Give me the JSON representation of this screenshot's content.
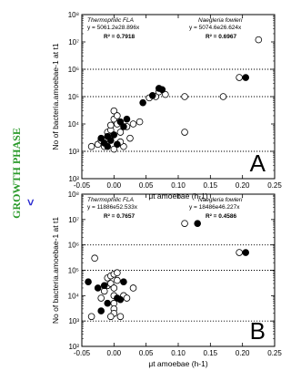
{
  "side_label": {
    "text": "GROWTH PHASE",
    "arrow": "<",
    "color": "#2a9a2a",
    "arrow_color": "#2a2ad0"
  },
  "chart_data": [
    {
      "type": "scatter",
      "panel": "A",
      "xlabel": "μt amoebae (h-1)",
      "ylabel": "No of bacteria.amoebae-1 at t1",
      "xlim": [
        -0.05,
        0.25
      ],
      "ylim": [
        100,
        100000000
      ],
      "yscale": "log",
      "x_ticks": [
        "-0.05",
        "0.00",
        "0.05",
        "0.10",
        "0.15",
        "0.20",
        "0.25"
      ],
      "y_ticks": [
        "10²",
        "10³",
        "10⁴",
        "10⁵",
        "10⁶",
        "10⁷",
        "10⁸"
      ],
      "grid": "dotted horizontal at 10³, 10⁵, 10⁶",
      "annotations": [
        {
          "title": "Thermophilic FLA",
          "equation": "y = 5061.2e28.896x",
          "r2": "R² = 0.7918"
        },
        {
          "title": "Naegleria fowleri",
          "equation": "y = 5074.6e26.624x",
          "r2": "R² = 0.6967"
        }
      ],
      "series": [
        {
          "marker": "filled",
          "points": [
            [
              -0.02,
              3000
            ],
            [
              -0.015,
              2000
            ],
            [
              -0.01,
              3500
            ],
            [
              -0.005,
              2500
            ],
            [
              0.0,
              4000
            ],
            [
              0.01,
              12000
            ],
            [
              0.015,
              8000
            ],
            [
              0.02,
              15000
            ],
            [
              0.045,
              60000
            ],
            [
              0.06,
              110000
            ],
            [
              0.07,
              200000
            ],
            [
              0.075,
              180000
            ],
            [
              0.205,
              500000
            ],
            [
              -0.01,
              1500
            ],
            [
              0.005,
              1800
            ]
          ]
        },
        {
          "marker": "open",
          "points": [
            [
              -0.035,
              1500
            ],
            [
              -0.025,
              1800
            ],
            [
              -0.02,
              2500
            ],
            [
              -0.015,
              1500
            ],
            [
              -0.01,
              5000
            ],
            [
              -0.005,
              6000
            ],
            [
              -0.005,
              9000
            ],
            [
              0.0,
              15000
            ],
            [
              0.0,
              30000
            ],
            [
              0.005,
              20000
            ],
            [
              0.005,
              10000
            ],
            [
              0.01,
              5000
            ],
            [
              0.015,
              1500
            ],
            [
              0.02,
              8000
            ],
            [
              0.025,
              3000
            ],
            [
              0.03,
              10000
            ],
            [
              0.04,
              12000
            ],
            [
              0.055,
              90000
            ],
            [
              0.065,
              100000
            ],
            [
              0.07,
              150000
            ],
            [
              0.08,
              120000
            ],
            [
              0.11,
              100000
            ],
            [
              0.11,
              5000
            ],
            [
              0.17,
              100000
            ],
            [
              0.195,
              500000
            ],
            [
              0.225,
              12000000
            ],
            [
              0.0,
              1200
            ],
            [
              0.01,
              2200
            ]
          ]
        }
      ]
    },
    {
      "type": "scatter",
      "panel": "B",
      "xlabel": "μt amoebae (h-1)",
      "ylabel": "No of bacteria.amoebae-1 at t1",
      "xlim": [
        -0.05,
        0.25
      ],
      "ylim": [
        100,
        100000000
      ],
      "yscale": "log",
      "x_ticks": [
        "-0.05",
        "0.00",
        "0.05",
        "0.10",
        "0.15",
        "0.20",
        "0.25"
      ],
      "y_ticks": [
        "10²",
        "10³",
        "10⁴",
        "10⁵",
        "10⁶",
        "10⁷",
        "10⁸"
      ],
      "grid": "dotted horizontal at 10³, 10⁵, 10⁶",
      "annotations": [
        {
          "title": "Thermophilic FLA",
          "equation": "y = 11886e52.533x",
          "r2": "R² = 0.7657"
        },
        {
          "title": "Naegleria fowleri",
          "equation": "y = 18486e46.227x",
          "r2": "R² = 0.4586"
        }
      ],
      "series": [
        {
          "marker": "filled",
          "points": [
            [
              -0.04,
              35000
            ],
            [
              -0.025,
              20000
            ],
            [
              -0.02,
              2500
            ],
            [
              -0.015,
              25000
            ],
            [
              -0.01,
              5000
            ],
            [
              0.005,
              8000
            ],
            [
              0.01,
              7000
            ],
            [
              0.015,
              35000
            ],
            [
              0.13,
              7000000
            ],
            [
              0.205,
              500000
            ]
          ]
        },
        {
          "marker": "open",
          "points": [
            [
              -0.035,
              1500
            ],
            [
              -0.03,
              300000
            ],
            [
              -0.02,
              8000
            ],
            [
              -0.015,
              15000
            ],
            [
              -0.01,
              25000
            ],
            [
              -0.01,
              50000
            ],
            [
              -0.005,
              60000
            ],
            [
              -0.005,
              30000
            ],
            [
              0.0,
              20000
            ],
            [
              0.0,
              10000
            ],
            [
              0.0,
              70000
            ],
            [
              0.0,
              5000
            ],
            [
              0.0,
              3000
            ],
            [
              0.0,
              2000
            ],
            [
              0.005,
              80000
            ],
            [
              0.005,
              40000
            ],
            [
              0.01,
              1500
            ],
            [
              0.015,
              10000
            ],
            [
              0.02,
              8000
            ],
            [
              0.03,
              20000
            ],
            [
              0.11,
              7000000
            ],
            [
              0.195,
              500000
            ],
            [
              -0.005,
              1500
            ]
          ]
        }
      ]
    }
  ]
}
